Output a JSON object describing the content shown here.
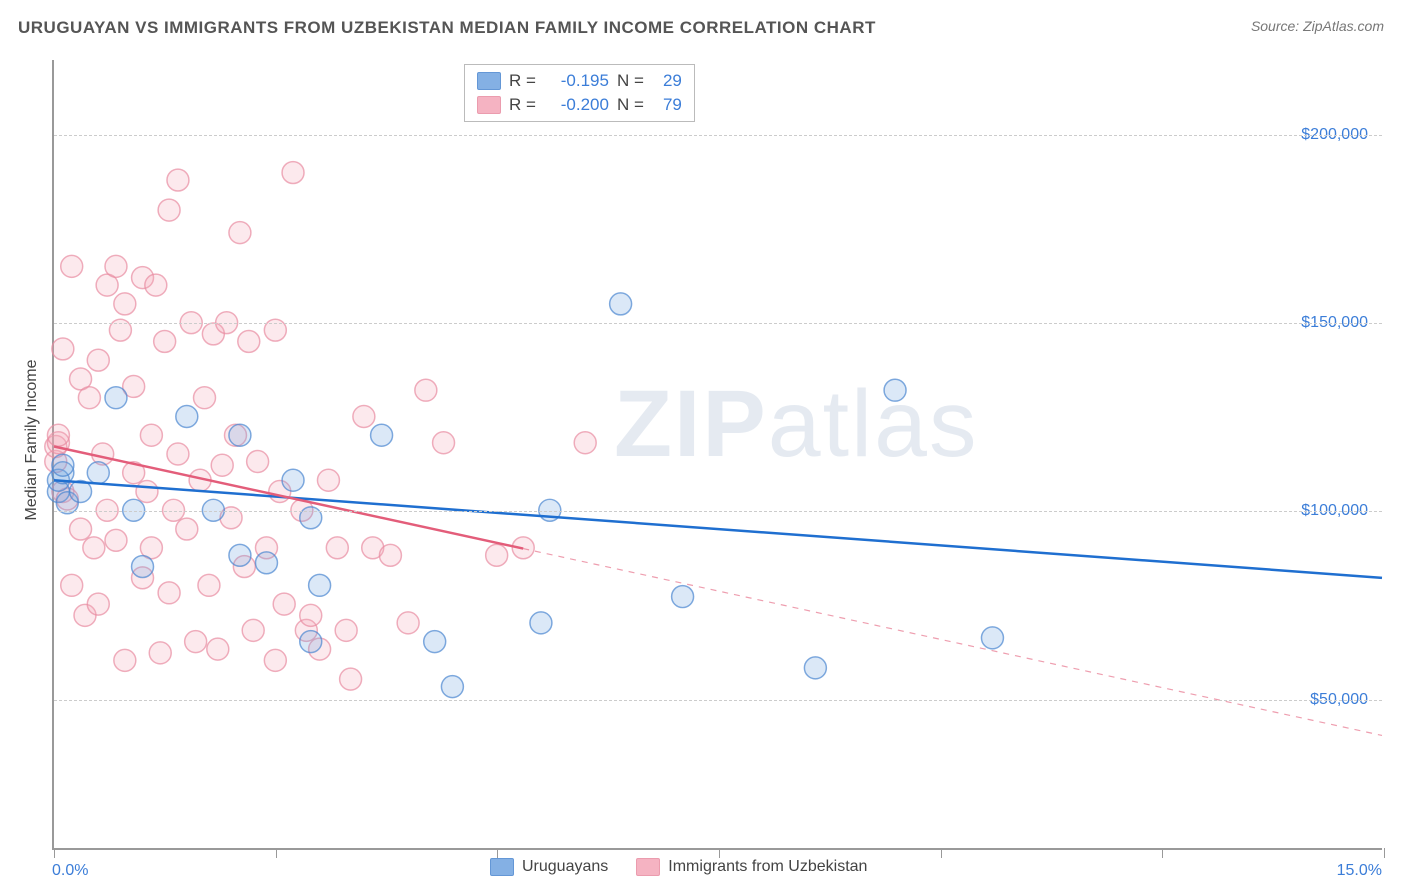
{
  "title": "URUGUAYAN VS IMMIGRANTS FROM UZBEKISTAN MEDIAN FAMILY INCOME CORRELATION CHART",
  "source_label": "Source: ",
  "source_name": "ZipAtlas.com",
  "y_axis_title": "Median Family Income",
  "watermark_bold": "ZIP",
  "watermark_rest": "atlas",
  "chart": {
    "type": "scatter",
    "x_domain": [
      0,
      15
    ],
    "y_domain": [
      10000,
      220000
    ],
    "x_ticks": [
      0,
      2.5,
      5,
      7.5,
      10,
      12.5,
      15
    ],
    "x_tick_labels_shown": {
      "0": "0.0%",
      "15": "15.0%"
    },
    "y_gridlines": [
      50000,
      100000,
      150000,
      200000
    ],
    "y_tick_labels": {
      "50000": "$50,000",
      "100000": "$100,000",
      "150000": "$150,000",
      "200000": "$200,000"
    },
    "background_color": "#ffffff",
    "grid_color": "#cccccc",
    "axis_color": "#999999",
    "tick_label_color": "#3b7dd8",
    "marker_radius": 11,
    "marker_fill_opacity": 0.25,
    "marker_stroke_width": 1.5,
    "trend_line_width": 2.5,
    "series": [
      {
        "key": "uruguayans",
        "label": "Uruguayans",
        "color": "#6fa3e0",
        "stroke": "#4a86d0",
        "trend_color": "#1f6fd0",
        "R": "-0.195",
        "N": "29",
        "trend": {
          "x1": 0,
          "y1": 108000,
          "x2": 15,
          "y2": 82000,
          "dashed_from_x": null
        },
        "points": [
          [
            0.05,
            105000
          ],
          [
            0.05,
            108000
          ],
          [
            0.1,
            110000
          ],
          [
            0.1,
            112000
          ],
          [
            0.15,
            102000
          ],
          [
            0.3,
            105000
          ],
          [
            0.5,
            110000
          ],
          [
            0.7,
            130000
          ],
          [
            0.9,
            100000
          ],
          [
            1.0,
            85000
          ],
          [
            1.5,
            125000
          ],
          [
            1.8,
            100000
          ],
          [
            2.1,
            88000
          ],
          [
            2.1,
            120000
          ],
          [
            2.4,
            86000
          ],
          [
            2.7,
            108000
          ],
          [
            2.9,
            98000
          ],
          [
            3.0,
            80000
          ],
          [
            2.9,
            65000
          ],
          [
            3.7,
            120000
          ],
          [
            4.3,
            65000
          ],
          [
            4.5,
            53000
          ],
          [
            5.6,
            100000
          ],
          [
            5.5,
            70000
          ],
          [
            6.4,
            155000
          ],
          [
            7.1,
            77000
          ],
          [
            8.6,
            58000
          ],
          [
            9.5,
            132000
          ],
          [
            10.6,
            66000
          ]
        ]
      },
      {
        "key": "uzbekistan",
        "label": "Immigrants from Uzbekistan",
        "color": "#f4a6b8",
        "stroke": "#e88ba1",
        "trend_color": "#e35d7a",
        "R": "-0.200",
        "N": "79",
        "trend": {
          "x1": 0,
          "y1": 117000,
          "x2": 15,
          "y2": 40000,
          "dashed_from_x": 5.3
        },
        "points": [
          [
            0.02,
            113000
          ],
          [
            0.02,
            117000
          ],
          [
            0.05,
            118000
          ],
          [
            0.05,
            120000
          ],
          [
            0.1,
            105000
          ],
          [
            0.1,
            143000
          ],
          [
            0.15,
            103000
          ],
          [
            0.2,
            165000
          ],
          [
            0.2,
            80000
          ],
          [
            0.3,
            135000
          ],
          [
            0.3,
            95000
          ],
          [
            0.35,
            72000
          ],
          [
            0.4,
            130000
          ],
          [
            0.45,
            90000
          ],
          [
            0.5,
            140000
          ],
          [
            0.5,
            75000
          ],
          [
            0.55,
            115000
          ],
          [
            0.6,
            160000
          ],
          [
            0.6,
            100000
          ],
          [
            0.7,
            92000
          ],
          [
            0.7,
            165000
          ],
          [
            0.75,
            148000
          ],
          [
            0.8,
            155000
          ],
          [
            0.8,
            60000
          ],
          [
            0.9,
            133000
          ],
          [
            0.9,
            110000
          ],
          [
            1.0,
            162000
          ],
          [
            1.0,
            82000
          ],
          [
            1.05,
            105000
          ],
          [
            1.1,
            120000
          ],
          [
            1.1,
            90000
          ],
          [
            1.15,
            160000
          ],
          [
            1.2,
            62000
          ],
          [
            1.25,
            145000
          ],
          [
            1.3,
            78000
          ],
          [
            1.3,
            180000
          ],
          [
            1.35,
            100000
          ],
          [
            1.4,
            188000
          ],
          [
            1.4,
            115000
          ],
          [
            1.5,
            95000
          ],
          [
            1.55,
            150000
          ],
          [
            1.6,
            65000
          ],
          [
            1.65,
            108000
          ],
          [
            1.7,
            130000
          ],
          [
            1.75,
            80000
          ],
          [
            1.8,
            147000
          ],
          [
            1.85,
            63000
          ],
          [
            1.9,
            112000
          ],
          [
            1.95,
            150000
          ],
          [
            2.0,
            98000
          ],
          [
            2.05,
            120000
          ],
          [
            2.1,
            174000
          ],
          [
            2.15,
            85000
          ],
          [
            2.2,
            145000
          ],
          [
            2.25,
            68000
          ],
          [
            2.3,
            113000
          ],
          [
            2.4,
            90000
          ],
          [
            2.5,
            148000
          ],
          [
            2.5,
            60000
          ],
          [
            2.55,
            105000
          ],
          [
            2.6,
            75000
          ],
          [
            2.7,
            190000
          ],
          [
            2.8,
            100000
          ],
          [
            2.85,
            68000
          ],
          [
            2.9,
            72000
          ],
          [
            3.0,
            63000
          ],
          [
            3.1,
            108000
          ],
          [
            3.2,
            90000
          ],
          [
            3.3,
            68000
          ],
          [
            3.35,
            55000
          ],
          [
            3.5,
            125000
          ],
          [
            3.6,
            90000
          ],
          [
            3.8,
            88000
          ],
          [
            4.0,
            70000
          ],
          [
            4.2,
            132000
          ],
          [
            4.4,
            118000
          ],
          [
            5.0,
            88000
          ],
          [
            5.3,
            90000
          ],
          [
            6.0,
            118000
          ]
        ]
      }
    ]
  },
  "stats_box": {
    "r_label": "R  =",
    "n_label": "N  ="
  }
}
